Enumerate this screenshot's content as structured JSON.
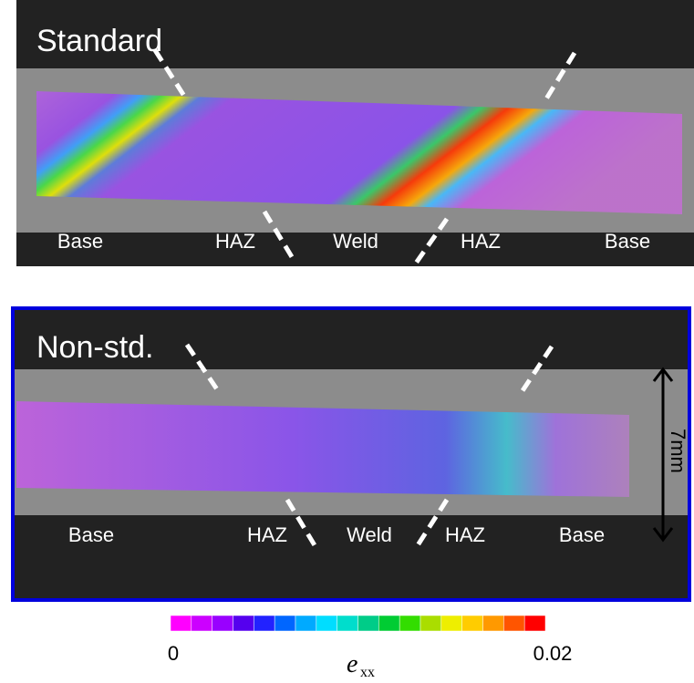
{
  "panels": [
    {
      "title": "Standard",
      "zones": [
        "Base",
        "HAZ",
        "Weld",
        "HAZ",
        "Base"
      ]
    },
    {
      "title": "Non-std.",
      "zones": [
        "Base",
        "HAZ",
        "Weld",
        "HAZ",
        "Base"
      ],
      "scale_label": "7mm"
    }
  ],
  "colorbar": {
    "range": [
      0,
      0.02
    ],
    "symbol": "e",
    "subscript": "xx",
    "colors": [
      "#ff00ff",
      "#cc00ff",
      "#9900ff",
      "#5500ee",
      "#2222ff",
      "#0066ff",
      "#00aaff",
      "#00ddff",
      "#00ddcc",
      "#00cc88",
      "#00cc33",
      "#33dd00",
      "#aadd00",
      "#eeee00",
      "#ffcc00",
      "#ff9900",
      "#ff5500",
      "#ff0000"
    ]
  }
}
